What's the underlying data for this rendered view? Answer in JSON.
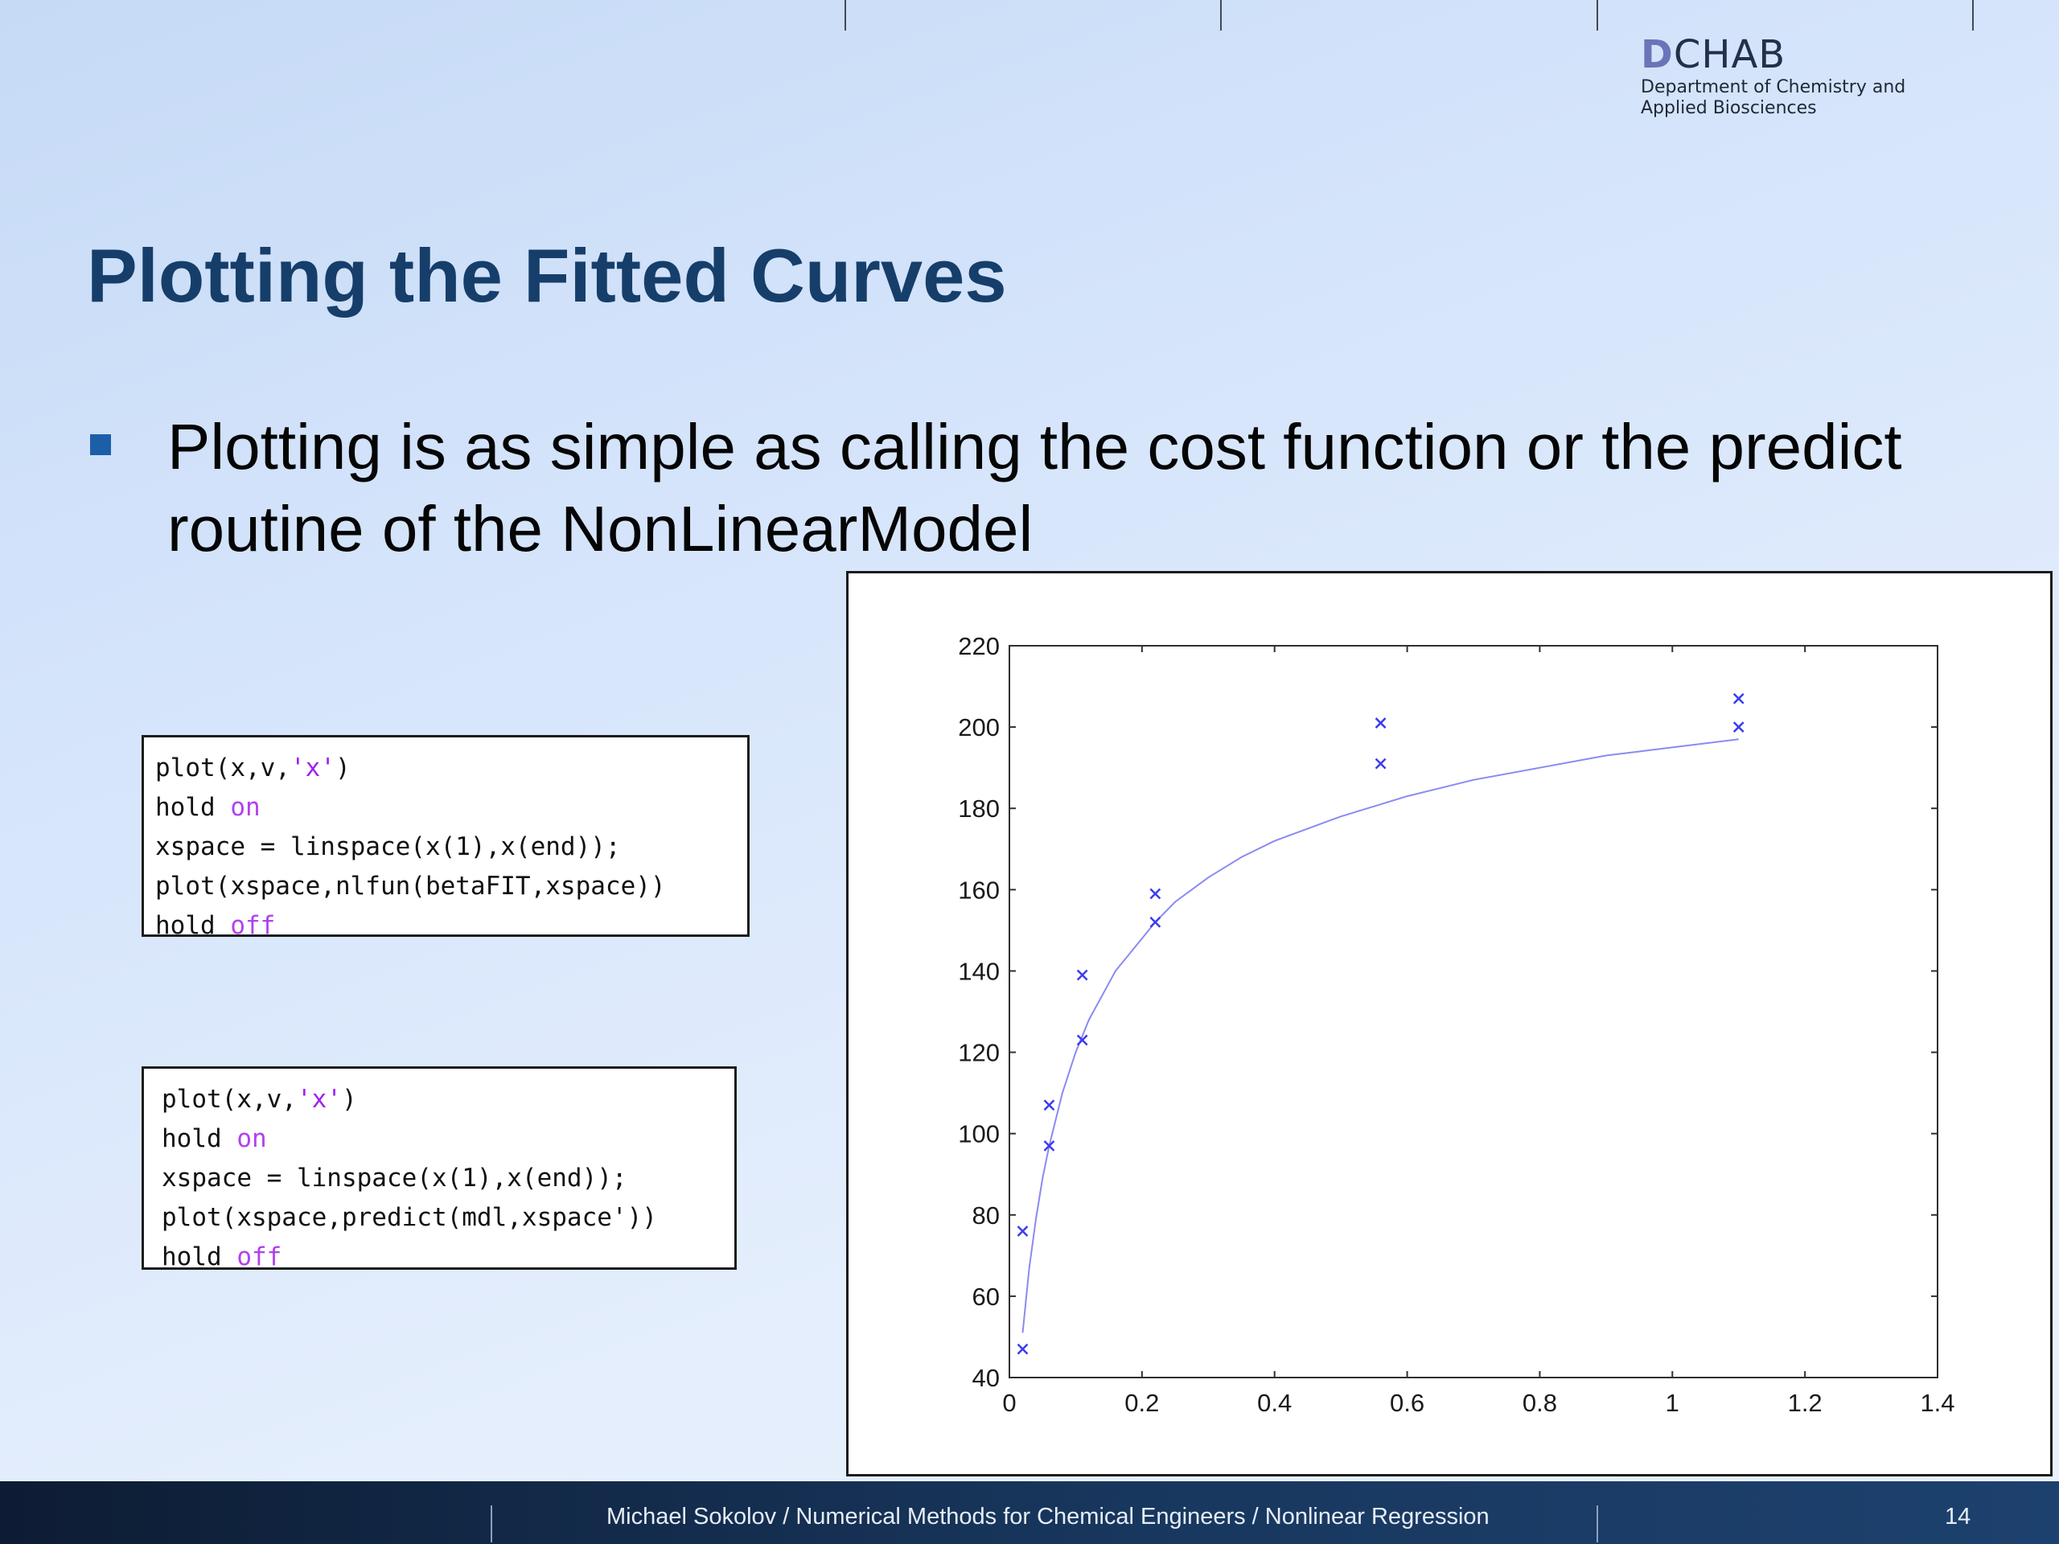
{
  "logo": {
    "mark": "D",
    "name": "CHAB",
    "subtitle_line1": "Department of Chemistry and",
    "subtitle_line2": "Applied Biosciences"
  },
  "slide": {
    "title": "Plotting the Fitted Curves",
    "bullet": "Plotting is as simple as calling the cost function or the predict routine of the NonLinearModel"
  },
  "code_blocks": [
    {
      "lines": [
        [
          {
            "text": "plot(x,v,",
            "kind": "plain"
          },
          {
            "text": "'x'",
            "kind": "string"
          },
          {
            "text": ")",
            "kind": "plain"
          }
        ],
        [
          {
            "text": "hold ",
            "kind": "plain"
          },
          {
            "text": "on",
            "kind": "keyword"
          }
        ],
        [
          {
            "text": "xspace = linspace(x(1),x(end));",
            "kind": "plain"
          }
        ],
        [
          {
            "text": "plot(xspace,nlfun(betaFIT,xspace))",
            "kind": "plain"
          }
        ],
        [
          {
            "text": "hold ",
            "kind": "plain"
          },
          {
            "text": "off",
            "kind": "keyword"
          }
        ]
      ]
    },
    {
      "lines": [
        [
          {
            "text": "plot(x,v,",
            "kind": "plain"
          },
          {
            "text": "'x'",
            "kind": "string"
          },
          {
            "text": ")",
            "kind": "plain"
          }
        ],
        [
          {
            "text": "hold ",
            "kind": "plain"
          },
          {
            "text": "on",
            "kind": "keyword"
          }
        ],
        [
          {
            "text": "xspace = linspace(x(1),x(end));",
            "kind": "plain"
          }
        ],
        [
          {
            "text": "plot(xspace,predict(mdl,xspace'))",
            "kind": "plain"
          }
        ],
        [
          {
            "text": "hold ",
            "kind": "plain"
          },
          {
            "text": "off",
            "kind": "keyword"
          }
        ]
      ]
    }
  ],
  "chart_data": {
    "type": "scatter",
    "title": "",
    "xlabel": "",
    "ylabel": "",
    "xlim": [
      0,
      1.4
    ],
    "ylim": [
      40,
      220
    ],
    "xticks": [
      0,
      0.2,
      0.4,
      0.6,
      0.8,
      1,
      1.2,
      1.4
    ],
    "xtick_labels": [
      "0",
      "0.2",
      "0.4",
      "0.6",
      "0.8",
      "1",
      "1.2",
      "1.4"
    ],
    "yticks": [
      40,
      60,
      80,
      100,
      120,
      140,
      160,
      180,
      200,
      220
    ],
    "ytick_labels": [
      "40",
      "60",
      "80",
      "100",
      "120",
      "140",
      "160",
      "180",
      "200",
      "220"
    ],
    "grid": false,
    "legend": "none",
    "series": [
      {
        "kind": "markers",
        "marker": "x",
        "color": "#3b3bf0",
        "points": [
          [
            0.02,
            76
          ],
          [
            0.02,
            47
          ],
          [
            0.06,
            107
          ],
          [
            0.06,
            97
          ],
          [
            0.11,
            139
          ],
          [
            0.11,
            123
          ],
          [
            0.22,
            159
          ],
          [
            0.22,
            152
          ],
          [
            0.56,
            201
          ],
          [
            0.56,
            191
          ],
          [
            1.1,
            207
          ],
          [
            1.1,
            200
          ]
        ]
      },
      {
        "kind": "fitted-curve",
        "color": "#8a8af2",
        "x": [
          0.02,
          0.03,
          0.04,
          0.05,
          0.06,
          0.08,
          0.1,
          0.12,
          0.14,
          0.16,
          0.18,
          0.2,
          0.22,
          0.25,
          0.3,
          0.35,
          0.4,
          0.5,
          0.56,
          0.6,
          0.7,
          0.8,
          0.9,
          1.0,
          1.1
        ],
        "y": [
          51,
          67,
          79,
          89,
          97,
          110,
          120,
          128,
          134,
          140,
          144,
          148,
          152,
          157,
          163,
          168,
          172,
          178,
          181,
          183,
          187,
          190,
          193,
          195,
          197
        ]
      }
    ]
  },
  "footer": {
    "text": "Michael Sokolov / Numerical Methods for Chemical Engineers / Nonlinear Regression",
    "page": "14"
  }
}
